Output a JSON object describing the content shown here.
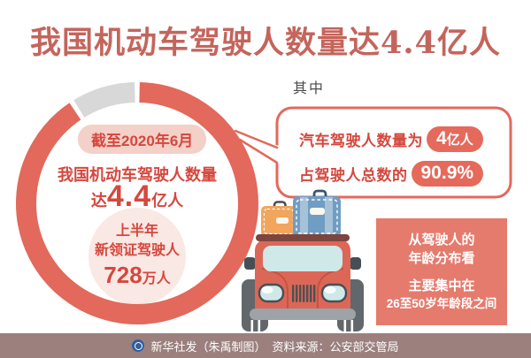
{
  "title": "我国机动车驾驶人数量达4.4亿人",
  "donut": {
    "badge": "截至2020年6月",
    "line1": "我国机动车驾驶人数量",
    "line2_prefix": "达",
    "line2_value": "4.4",
    "line2_suffix": "亿人",
    "inner_l1": "上半年",
    "inner_l2": "新领证驾驶人",
    "inner_value": "728",
    "inner_unit": "万人"
  },
  "bubble": {
    "heading": "其中",
    "row1_label": "汽车驾驶人数量为",
    "row1_value": "4",
    "row1_unit": "亿人",
    "row2_label": "占驾驶人总数的",
    "row2_value": "90.9%"
  },
  "age_box": {
    "l1": "从驾驶人的",
    "l2": "年龄分布看",
    "l3": "主要集中在",
    "l4": "26至50岁年龄段之间"
  },
  "footer": {
    "credit": "新华社发（朱禹制图）",
    "source": "资料来源：公安部交管局"
  },
  "colors": {
    "accent_salmon": "#e2695b",
    "ring_gray": "#d8d8d8",
    "deep_red_text": "#d6473d",
    "title_red": "#c4655c",
    "pink_badge": "#f3d0c8",
    "inner_circle_pink": "#f9e8e4",
    "age_box_bg": "#e57b6d",
    "footer_bg": "#9b807e",
    "logo_blue": "#2f5f9e"
  },
  "chart_data": {
    "type": "pie",
    "subtype": "donut",
    "title": "截至2020年6月我国机动车驾驶人数量达4.4亿人",
    "labels": [
      "汽车驾驶人",
      "其他"
    ],
    "values": [
      90.9,
      9.1
    ],
    "colors": [
      "#e2695b",
      "#d8d8d8"
    ],
    "unit": "%",
    "start_angle_deg": 0,
    "direction": "clockwise",
    "legend": "none",
    "annotations": [
      "汽车驾驶人数量为4亿人",
      "占驾驶人总数的90.9%",
      "上半年新领证驾驶人728万人",
      "从驾驶人的年龄分布看主要集中在26至50岁年龄段之间"
    ]
  }
}
